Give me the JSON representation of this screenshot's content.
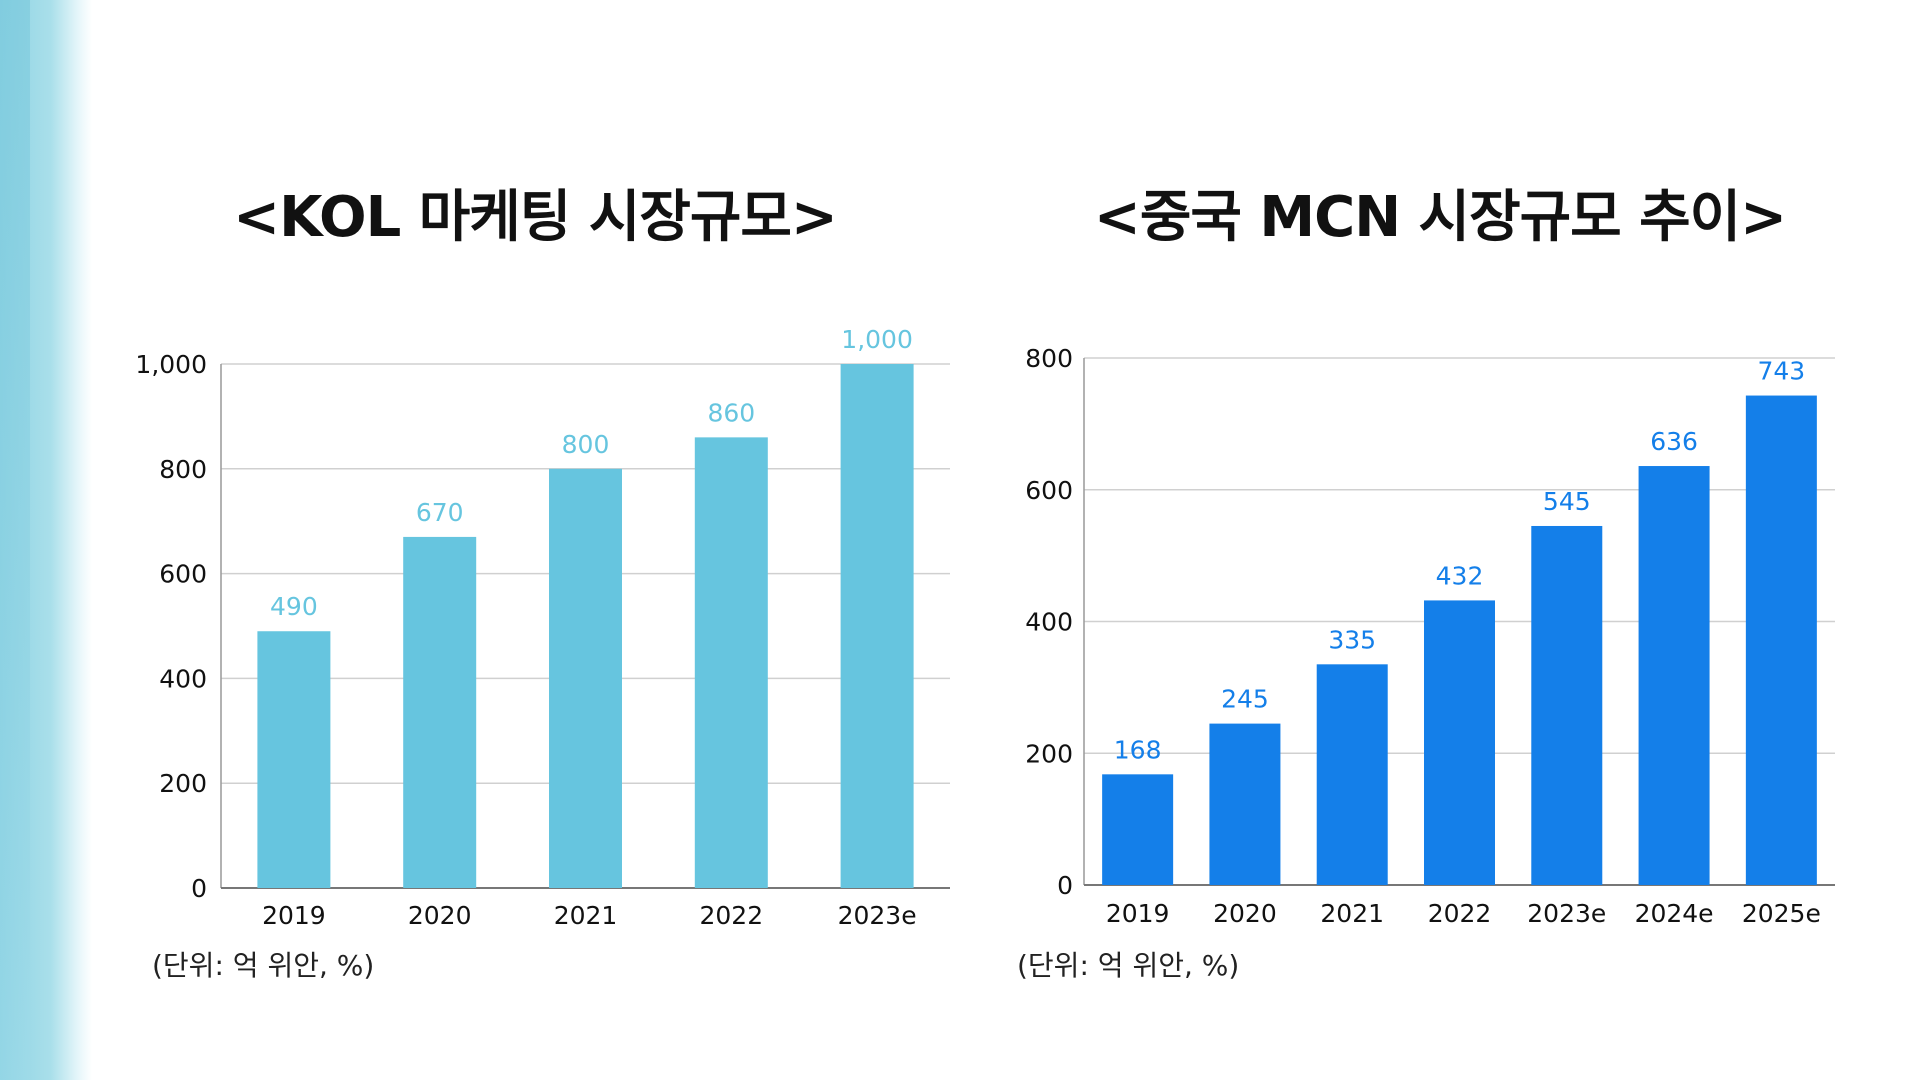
{
  "colors": {
    "kol_bar": "#66c5df",
    "kol_label": "#66c5df",
    "mcn_bar": "#147fe9",
    "mcn_label": "#147fe9",
    "axis_text": "#111111",
    "grid": "#d0d0d0"
  },
  "chart_data": [
    {
      "type": "bar",
      "title": "<KOL 마케팅 시장규모>",
      "unit_note": "(단위: 억 위안, %)",
      "categories": [
        "2019",
        "2020",
        "2021",
        "2022",
        "2023e"
      ],
      "values": [
        490,
        670,
        800,
        860,
        1000
      ],
      "value_labels": [
        "490",
        "670",
        "800",
        "860",
        "1,000"
      ],
      "y_ticks": [
        0,
        200,
        400,
        600,
        800,
        1000
      ],
      "y_tick_labels": [
        "0",
        "200",
        "400",
        "600",
        "800",
        "1,000"
      ],
      "ylim": [
        0,
        1000
      ],
      "grid": true
    },
    {
      "type": "bar",
      "title": "<중국 MCN 시장규모 추이>",
      "unit_note": "(단위: 억 위안, %)",
      "categories": [
        "2019",
        "2020",
        "2021",
        "2022",
        "2023e",
        "2024e",
        "2025e"
      ],
      "values": [
        168,
        245,
        335,
        432,
        545,
        636,
        743
      ],
      "value_labels": [
        "168",
        "245",
        "335",
        "432",
        "545",
        "636",
        "743"
      ],
      "y_ticks": [
        0,
        200,
        400,
        600,
        800
      ],
      "y_tick_labels": [
        "0",
        "200",
        "400",
        "600",
        "800"
      ],
      "ylim": [
        0,
        800
      ],
      "grid": true
    }
  ]
}
